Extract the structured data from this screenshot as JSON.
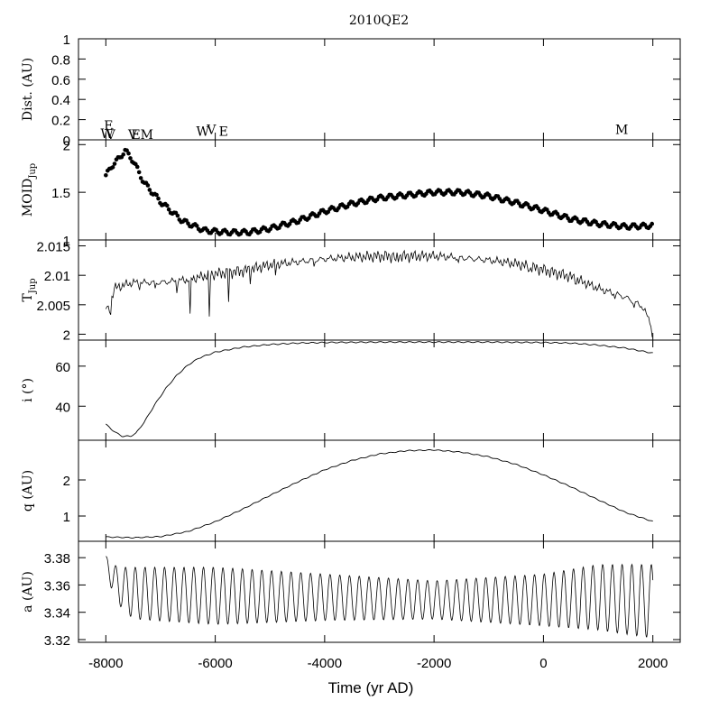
{
  "title": "2010QE2",
  "x_axis": {
    "label": "Time (yr AD)",
    "range": [
      -8500,
      2500
    ],
    "ticks": [
      -8000,
      -6000,
      -4000,
      -2000,
      0,
      2000
    ],
    "tick_labels": [
      "-8000",
      "-6000",
      "-4000",
      "-2000",
      "0",
      "2000"
    ]
  },
  "chart_data": [
    {
      "type": "scatter",
      "id": "dist",
      "ylabel": "Dist. (AU)",
      "ylim": [
        0,
        1
      ],
      "ticks": [
        0,
        0.2,
        0.4,
        0.6,
        0.8,
        1
      ],
      "tick_labels": [
        "0",
        "0.2",
        "0.4",
        "0.6",
        "0.8",
        "1"
      ],
      "encounters": [
        {
          "letter": "E",
          "x": -7950,
          "y": 0.09
        },
        {
          "letter": "W",
          "x": -7980,
          "y": 0.01
        },
        {
          "letter": "V",
          "x": -7910,
          "y": 0.0
        },
        {
          "letter": "V",
          "x": -7510,
          "y": 0.0
        },
        {
          "letter": "E",
          "x": -7450,
          "y": 0.0
        },
        {
          "letter": "M",
          "x": -7250,
          "y": 0.0
        },
        {
          "letter": "W",
          "x": -6230,
          "y": 0.03
        },
        {
          "letter": "V",
          "x": -6070,
          "y": 0.05
        },
        {
          "letter": "E",
          "x": -5850,
          "y": 0.03
        },
        {
          "letter": "M",
          "x": 1430,
          "y": 0.05
        }
      ]
    },
    {
      "type": "scatter",
      "id": "moid",
      "ylabel": "MOID",
      "ylabel_sub": "Jup",
      "ylim": [
        1,
        2.05
      ],
      "ticks": [
        1,
        1.5,
        2
      ],
      "tick_labels": [
        "1",
        "1.5",
        "2"
      ],
      "x_range": [
        -8000,
        2000
      ],
      "keypoints": [
        [
          -8000,
          1.67
        ],
        [
          -7900,
          1.77
        ],
        [
          -7750,
          1.86
        ],
        [
          -7650,
          1.94
        ],
        [
          -7500,
          1.83
        ],
        [
          -7300,
          1.6
        ],
        [
          -7000,
          1.4
        ],
        [
          -6600,
          1.2
        ],
        [
          -6200,
          1.1
        ],
        [
          -5800,
          1.08
        ],
        [
          -5400,
          1.08
        ],
        [
          -5000,
          1.12
        ],
        [
          -4500,
          1.2
        ],
        [
          -4000,
          1.3
        ],
        [
          -3500,
          1.38
        ],
        [
          -3000,
          1.44
        ],
        [
          -2500,
          1.47
        ],
        [
          -2000,
          1.5
        ],
        [
          -1500,
          1.5
        ],
        [
          -1000,
          1.46
        ],
        [
          -500,
          1.39
        ],
        [
          0,
          1.31
        ],
        [
          500,
          1.22
        ],
        [
          1000,
          1.17
        ],
        [
          1500,
          1.14
        ],
        [
          2000,
          1.15
        ]
      ],
      "oscillation_period_yr": 178,
      "oscillation_amplitude": 0.025
    },
    {
      "type": "line",
      "id": "tjup",
      "ylabel": "T",
      "ylabel_sub": "Jup",
      "ylim": [
        1.999,
        2.016
      ],
      "ticks": [
        2,
        2.005,
        2.01,
        2.015
      ],
      "tick_labels": [
        "2",
        "2.005",
        "2.01",
        "2.015"
      ],
      "x_range": [
        -8000,
        2000
      ],
      "keypoints": [
        [
          -8000,
          2.005
        ],
        [
          -7950,
          2.004
        ],
        [
          -7850,
          2.008
        ],
        [
          -7700,
          2.0085
        ],
        [
          -7500,
          2.009
        ],
        [
          -7000,
          2.009
        ],
        [
          -6500,
          2.0095
        ],
        [
          -6000,
          2.0105
        ],
        [
          -5500,
          2.011
        ],
        [
          -5000,
          2.012
        ],
        [
          -4500,
          2.0125
        ],
        [
          -4000,
          2.013
        ],
        [
          -3500,
          2.0133
        ],
        [
          -3000,
          2.0135
        ],
        [
          -2500,
          2.0135
        ],
        [
          -2000,
          2.0135
        ],
        [
          -1500,
          2.0132
        ],
        [
          -1000,
          2.0128
        ],
        [
          -500,
          2.0122
        ],
        [
          0,
          2.0112
        ],
        [
          500,
          2.01
        ],
        [
          1000,
          2.008
        ],
        [
          1500,
          2.0065
        ],
        [
          1800,
          2.005
        ],
        [
          2000,
          2.0015
        ]
      ],
      "dips": [
        [
          -7920,
          2.0033
        ],
        [
          -7380,
          2.0075
        ],
        [
          -7100,
          2.0078
        ],
        [
          -6700,
          2.007
        ],
        [
          -6450,
          2.0035
        ],
        [
          -6100,
          2.003
        ],
        [
          -5750,
          2.0055
        ],
        [
          -5350,
          2.0085
        ],
        [
          -4900,
          2.01
        ],
        [
          -4200,
          2.0115
        ],
        [
          -2700,
          2.0125
        ],
        [
          -1550,
          2.0122
        ],
        [
          -250,
          2.0108
        ],
        [
          600,
          2.0085
        ],
        [
          1300,
          2.006
        ],
        [
          1650,
          2.0045
        ],
        [
          1980,
          1.9995
        ]
      ]
    },
    {
      "type": "line",
      "id": "incl",
      "ylabel": "i (°)",
      "ylim": [
        23,
        73
      ],
      "ticks": [
        40,
        60
      ],
      "tick_labels": [
        "40",
        "60"
      ],
      "x_range": [
        -8000,
        2000
      ],
      "keypoints": [
        [
          -8000,
          31
        ],
        [
          -7900,
          28.5
        ],
        [
          -7800,
          26.5
        ],
        [
          -7700,
          25
        ],
        [
          -7550,
          25
        ],
        [
          -7450,
          26.5
        ],
        [
          -7300,
          32
        ],
        [
          -7100,
          41
        ],
        [
          -6900,
          49
        ],
        [
          -6700,
          55.5
        ],
        [
          -6500,
          60.5
        ],
        [
          -6300,
          64
        ],
        [
          -6000,
          67
        ],
        [
          -5500,
          69.5
        ],
        [
          -5000,
          70.8
        ],
        [
          -4500,
          71.5
        ],
        [
          -4000,
          71.8
        ],
        [
          -3000,
          72
        ],
        [
          -2000,
          72
        ],
        [
          -1000,
          72
        ],
        [
          0,
          71.8
        ],
        [
          500,
          71.5
        ],
        [
          1000,
          70.5
        ],
        [
          1500,
          69
        ],
        [
          2000,
          66.5
        ]
      ],
      "oscillation_period_yr": 178,
      "oscillation_amplitude": 0.25
    },
    {
      "type": "line",
      "id": "q",
      "ylabel": "q (AU)",
      "ylim": [
        0.3,
        3.1
      ],
      "ticks": [
        1,
        2
      ],
      "tick_labels": [
        "1",
        "2"
      ],
      "x_range": [
        -8000,
        2000
      ],
      "keypoints": [
        [
          -8000,
          0.42
        ],
        [
          -7500,
          0.4
        ],
        [
          -7000,
          0.43
        ],
        [
          -6500,
          0.57
        ],
        [
          -6000,
          0.84
        ],
        [
          -5500,
          1.19
        ],
        [
          -5000,
          1.57
        ],
        [
          -4500,
          1.94
        ],
        [
          -4000,
          2.28
        ],
        [
          -3500,
          2.54
        ],
        [
          -3000,
          2.72
        ],
        [
          -2500,
          2.81
        ],
        [
          -2000,
          2.83
        ],
        [
          -1500,
          2.77
        ],
        [
          -1000,
          2.64
        ],
        [
          -500,
          2.43
        ],
        [
          0,
          2.14
        ],
        [
          500,
          1.81
        ],
        [
          1000,
          1.45
        ],
        [
          1500,
          1.1
        ],
        [
          2000,
          0.85
        ]
      ],
      "oscillation_period_yr": 178,
      "oscillation_amplitude": 0.012
    },
    {
      "type": "line",
      "id": "a",
      "ylabel": "a (AU)",
      "xlabel": "Time (yr AD)",
      "ylim": [
        3.318,
        3.392
      ],
      "ticks": [
        3.32,
        3.34,
        3.36,
        3.38
      ],
      "tick_labels": [
        "3.32",
        "3.34",
        "3.36",
        "3.38"
      ],
      "x_range": [
        -8000,
        2000
      ],
      "oscillation_period_yr": 178,
      "center_keypoints": [
        [
          -8000,
          3.377
        ],
        [
          -7800,
          3.36
        ],
        [
          -7500,
          3.354
        ],
        [
          -6000,
          3.352
        ],
        [
          -4000,
          3.351
        ],
        [
          -2000,
          3.349
        ],
        [
          0,
          3.349
        ],
        [
          1000,
          3.351
        ],
        [
          2000,
          3.348
        ]
      ],
      "amplitude_keypoints": [
        [
          -8000,
          0.004
        ],
        [
          -7900,
          0.011
        ],
        [
          -7500,
          0.019
        ],
        [
          -6000,
          0.021
        ],
        [
          -4000,
          0.017
        ],
        [
          -2000,
          0.014
        ],
        [
          0,
          0.019
        ],
        [
          1000,
          0.024
        ],
        [
          2000,
          0.027
        ]
      ]
    }
  ]
}
